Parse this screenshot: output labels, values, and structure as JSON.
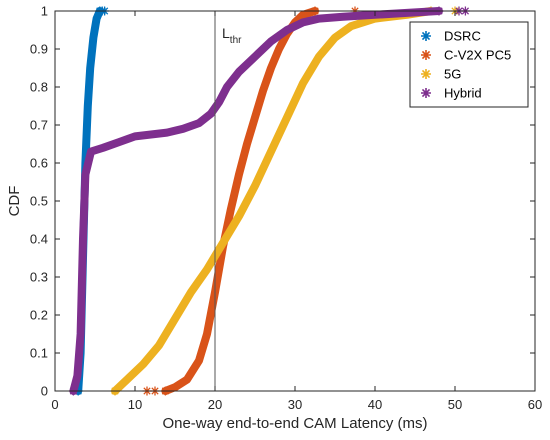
{
  "chart_data": {
    "type": "line",
    "xlabel": "One-way end-to-end CAM Latency (ms)",
    "ylabel": "CDF",
    "xlim": [
      0,
      60
    ],
    "ylim": [
      0,
      1
    ],
    "xticks": [
      "0",
      "10",
      "20",
      "30",
      "40",
      "50",
      "60"
    ],
    "yticks": [
      "0",
      "0.1",
      "0.2",
      "0.3",
      "0.4",
      "0.5",
      "0.6",
      "0.7",
      "0.8",
      "0.9",
      "1"
    ],
    "grid": false,
    "legend_position": "top-right",
    "marker": "asterisk",
    "annotation": {
      "label": "L",
      "subscript": "thr",
      "x": 20
    },
    "series": [
      {
        "name": "DSRC",
        "color": "#0072BD",
        "points": [
          [
            2.9,
            0
          ],
          [
            3.2,
            0.1
          ],
          [
            3.5,
            0.35
          ],
          [
            3.8,
            0.6
          ],
          [
            4.1,
            0.75
          ],
          [
            4.4,
            0.85
          ],
          [
            4.8,
            0.93
          ],
          [
            5.2,
            0.98
          ],
          [
            5.6,
            1.0
          ]
        ],
        "outliers": [
          [
            5.9,
            1.0
          ],
          [
            6.2,
            1.0
          ]
        ]
      },
      {
        "name": "C-V2X PC5",
        "color": "#D95319",
        "points": [
          [
            13.8,
            0
          ],
          [
            15,
            0.01
          ],
          [
            16.5,
            0.03
          ],
          [
            18,
            0.08
          ],
          [
            19,
            0.15
          ],
          [
            20,
            0.26
          ],
          [
            21,
            0.38
          ],
          [
            22,
            0.48
          ],
          [
            23,
            0.57
          ],
          [
            24,
            0.65
          ],
          [
            25,
            0.72
          ],
          [
            26,
            0.79
          ],
          [
            27,
            0.85
          ],
          [
            28,
            0.9
          ],
          [
            29,
            0.94
          ],
          [
            30,
            0.97
          ],
          [
            31,
            0.99
          ],
          [
            32.5,
            1.0
          ]
        ],
        "outliers": [
          [
            11.5,
            0
          ],
          [
            12.5,
            0
          ],
          [
            37.5,
            1.0
          ]
        ]
      },
      {
        "name": "5G",
        "color": "#EDB120",
        "points": [
          [
            7.5,
            0
          ],
          [
            9,
            0.03
          ],
          [
            11,
            0.07
          ],
          [
            13,
            0.12
          ],
          [
            15,
            0.19
          ],
          [
            17,
            0.26
          ],
          [
            19,
            0.32
          ],
          [
            21,
            0.39
          ],
          [
            23,
            0.46
          ],
          [
            25,
            0.54
          ],
          [
            27,
            0.63
          ],
          [
            29,
            0.72
          ],
          [
            31,
            0.81
          ],
          [
            33,
            0.88
          ],
          [
            35,
            0.93
          ],
          [
            37,
            0.96
          ],
          [
            40,
            0.98
          ],
          [
            44,
            0.99
          ],
          [
            47,
            1.0
          ]
        ],
        "outliers": [
          [
            50,
            1.0
          ]
        ]
      },
      {
        "name": "Hybrid",
        "color": "#7E2F8E",
        "points": [
          [
            2.3,
            0
          ],
          [
            2.8,
            0.04
          ],
          [
            3.2,
            0.15
          ],
          [
            3.5,
            0.4
          ],
          [
            3.8,
            0.57
          ],
          [
            4.5,
            0.63
          ],
          [
            6,
            0.64
          ],
          [
            8,
            0.655
          ],
          [
            10,
            0.67
          ],
          [
            12,
            0.675
          ],
          [
            14,
            0.68
          ],
          [
            16,
            0.69
          ],
          [
            18,
            0.705
          ],
          [
            19.5,
            0.73
          ],
          [
            20.5,
            0.76
          ],
          [
            21.5,
            0.8
          ],
          [
            23,
            0.84
          ],
          [
            25,
            0.88
          ],
          [
            27,
            0.92
          ],
          [
            29,
            0.95
          ],
          [
            31,
            0.97
          ],
          [
            33,
            0.98
          ],
          [
            36,
            0.985
          ],
          [
            40,
            0.99
          ],
          [
            44,
            0.995
          ],
          [
            48,
            1.0
          ]
        ],
        "outliers": [
          [
            50.5,
            1.0
          ],
          [
            51.3,
            1.0
          ]
        ]
      }
    ]
  }
}
